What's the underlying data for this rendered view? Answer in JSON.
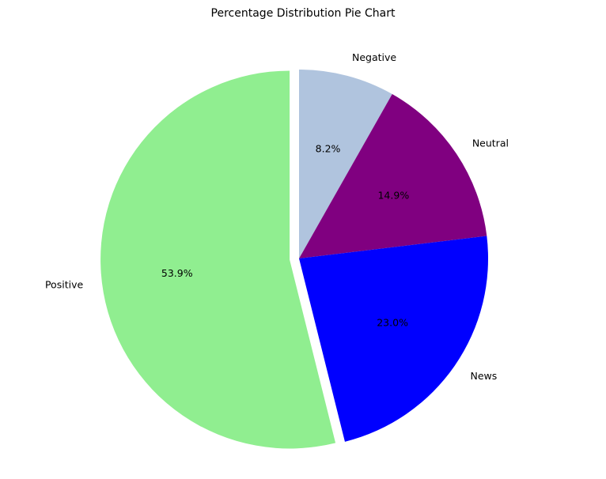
{
  "chart_data": {
    "type": "pie",
    "title": "Percentage Distribution Pie Chart",
    "slices": [
      {
        "label": "Negative",
        "value": 8.2,
        "pct_label": "8.2%",
        "color": "#b0c4de",
        "explode": false
      },
      {
        "label": "Neutral",
        "value": 14.9,
        "pct_label": "14.9%",
        "color": "#800080",
        "explode": false
      },
      {
        "label": "News",
        "value": 23.0,
        "pct_label": "23.0%",
        "color": "#0000ff",
        "explode": false
      },
      {
        "label": "Positive",
        "value": 53.9,
        "pct_label": "53.9%",
        "color": "#90ee90",
        "explode": true
      }
    ],
    "start_angle": "12 o'clock",
    "direction": "clockwise"
  }
}
